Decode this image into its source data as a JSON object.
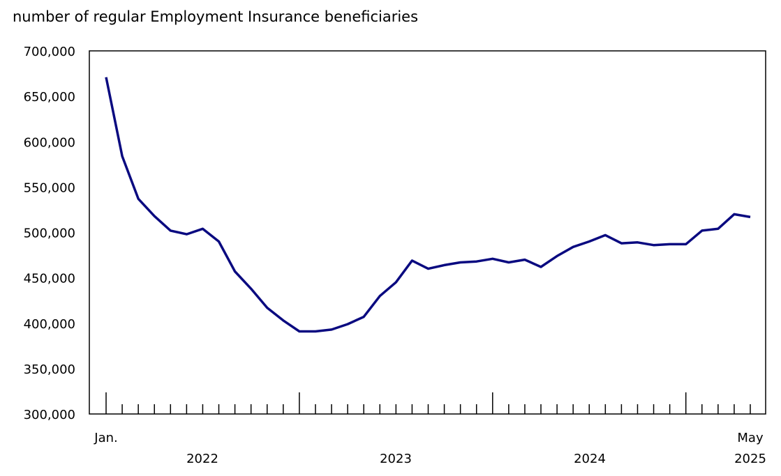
{
  "chart_data": {
    "type": "line",
    "title": "number of regular Employment Insurance beneficiaries",
    "xlabel": "",
    "ylabel": "",
    "ylim": [
      300000,
      700000
    ],
    "yticks": [
      300000,
      350000,
      400000,
      450000,
      500000,
      550000,
      600000,
      650000,
      700000
    ],
    "ytick_labels": [
      "300,000",
      "350,000",
      "400,000",
      "450,000",
      "500,000",
      "550,000",
      "600,000",
      "650,000",
      "700,000"
    ],
    "x_start_label": "Jan.",
    "x_end_label": "May",
    "year_labels": [
      "2022",
      "2023",
      "2024",
      "2025"
    ],
    "grid": false,
    "line_color": "#0a0a80",
    "x": [
      "2022-01",
      "2022-02",
      "2022-03",
      "2022-04",
      "2022-05",
      "2022-06",
      "2022-07",
      "2022-08",
      "2022-09",
      "2022-10",
      "2022-11",
      "2022-12",
      "2023-01",
      "2023-02",
      "2023-03",
      "2023-04",
      "2023-05",
      "2023-06",
      "2023-07",
      "2023-08",
      "2023-09",
      "2023-10",
      "2023-11",
      "2023-12",
      "2024-01",
      "2024-02",
      "2024-03",
      "2024-04",
      "2024-05",
      "2024-06",
      "2024-07",
      "2024-08",
      "2024-09",
      "2024-10",
      "2024-11",
      "2024-12",
      "2025-01",
      "2025-02",
      "2025-03",
      "2025-04",
      "2025-05"
    ],
    "values": [
      671000,
      584000,
      537000,
      518000,
      502000,
      498000,
      504000,
      490000,
      457000,
      438000,
      417000,
      403000,
      391000,
      391000,
      393000,
      399000,
      407000,
      430000,
      445000,
      469000,
      460000,
      464000,
      467000,
      468000,
      471000,
      467000,
      470000,
      462000,
      474000,
      484000,
      490000,
      497000,
      488000,
      489000,
      486000,
      487000,
      487000,
      502000,
      504000,
      520000,
      517000
    ]
  }
}
